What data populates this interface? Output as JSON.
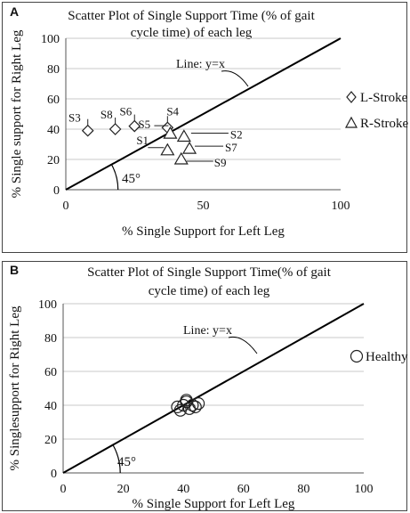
{
  "chart_data": [
    {
      "panel": "A",
      "type": "scatter",
      "title": "Scatter Plot of Single Support Time (% of gait cycle time) of each leg",
      "title_lines": [
        "Scatter Plot of Single Support Time (% of gait",
        "cycle time) of each leg"
      ],
      "xlabel": "% Single Support for Left Leg",
      "ylabel": "% Single support for Right Leg",
      "xlim": [
        0,
        100
      ],
      "ylim": [
        0,
        100
      ],
      "xticks": [
        0,
        50,
        100
      ],
      "yticks": [
        0,
        20,
        40,
        60,
        80,
        100
      ],
      "grid": "horizontal",
      "reference_line": {
        "label": "Line: y=x",
        "angle_label": "45°"
      },
      "legend_position": "right",
      "series": [
        {
          "name": "L-Stroke",
          "marker": "diamond",
          "points": [
            {
              "label": "S3",
              "x": 8,
              "y": 39
            },
            {
              "label": "S8",
              "x": 18,
              "y": 40
            },
            {
              "label": "S6",
              "x": 25,
              "y": 42
            },
            {
              "label": "S4",
              "x": 37,
              "y": 41
            }
          ]
        },
        {
          "name": "R-Stroke",
          "marker": "triangle",
          "points": [
            {
              "label": "S5",
              "x": 38,
              "y": 37
            },
            {
              "label": "S2",
              "x": 43,
              "y": 35
            },
            {
              "label": "S7",
              "x": 45,
              "y": 27
            },
            {
              "label": "S1",
              "x": 37,
              "y": 26
            },
            {
              "label": "S9",
              "x": 42,
              "y": 20
            }
          ]
        }
      ]
    },
    {
      "panel": "B",
      "type": "scatter",
      "title": "Scatter Plot of Single Support Time(% of gait cycle time) of each leg",
      "title_lines": [
        "Scatter Plot of Single Support Time(% of gait",
        "cycle time) of each leg"
      ],
      "xlabel": "% Single Support for Left Leg",
      "ylabel": "% Singlesupport for Right Leg",
      "xlim": [
        0,
        100
      ],
      "ylim": [
        0,
        100
      ],
      "xticks": [
        0,
        20,
        40,
        60,
        80,
        100
      ],
      "yticks": [
        0,
        20,
        40,
        60,
        80,
        100
      ],
      "grid": "horizontal",
      "reference_line": {
        "label": "Line: y=x",
        "angle_label": "45°"
      },
      "legend_position": "right",
      "series": [
        {
          "name": "Healthy",
          "marker": "circle",
          "points": [
            {
              "x": 38,
              "y": 39
            },
            {
              "x": 39,
              "y": 37
            },
            {
              "x": 40,
              "y": 40
            },
            {
              "x": 41,
              "y": 42
            },
            {
              "x": 41,
              "y": 43
            },
            {
              "x": 42,
              "y": 38
            },
            {
              "x": 43,
              "y": 40
            },
            {
              "x": 44,
              "y": 39
            },
            {
              "x": 45,
              "y": 41
            }
          ]
        }
      ]
    }
  ]
}
